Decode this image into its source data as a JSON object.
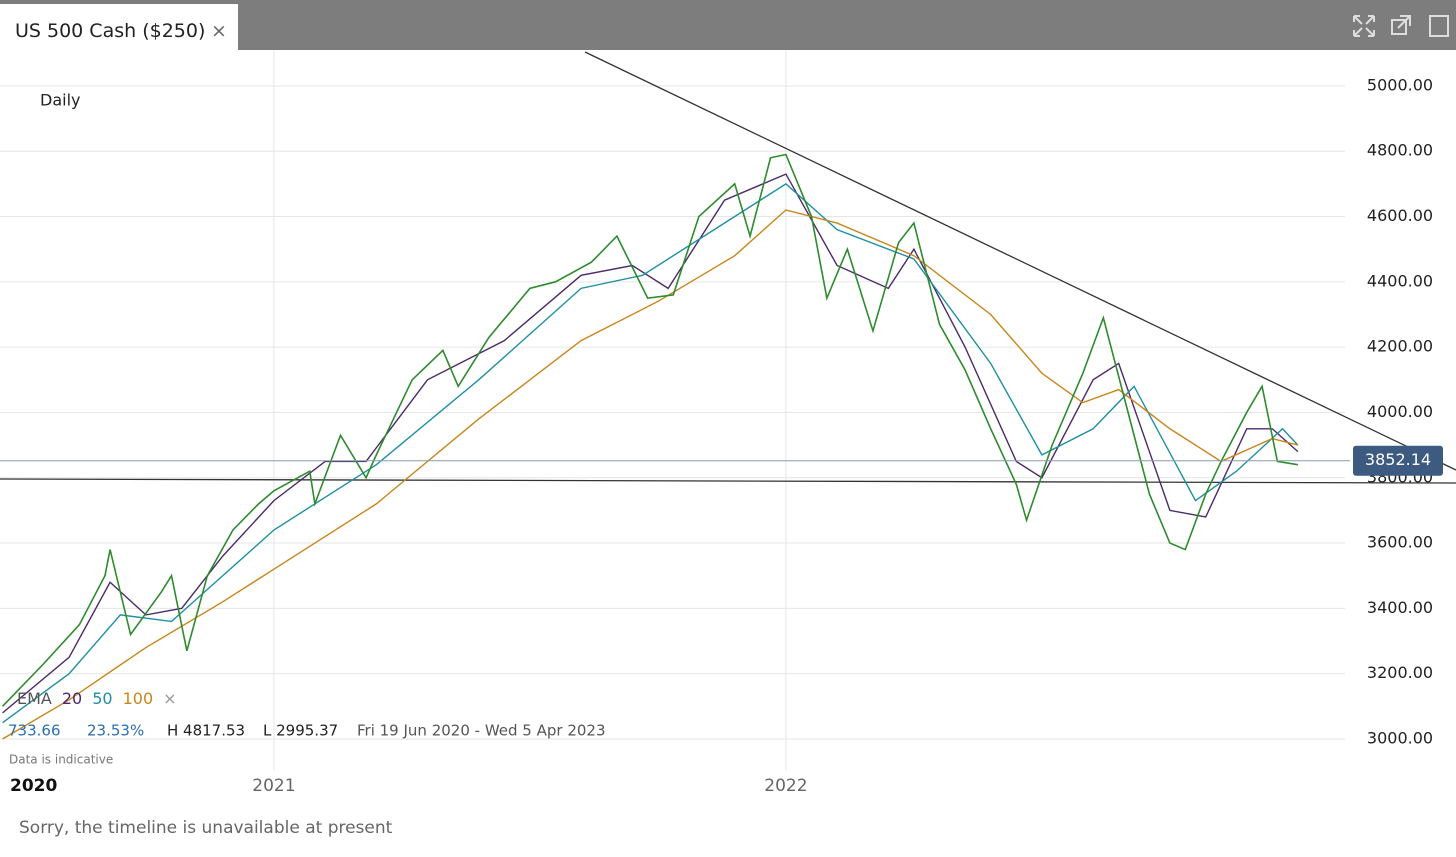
{
  "tab": {
    "title": "US 500 Cash ($250)",
    "close": "×"
  },
  "chart_data": {
    "type": "line",
    "interval": "Daily",
    "xlim": [
      2020.465,
      2023.092
    ],
    "x_start_label": "2020",
    "xticks": [
      {
        "value": 2021,
        "label": "2021"
      },
      {
        "value": 2022,
        "label": "2022"
      }
    ],
    "ylim": [
      2905,
      5110
    ],
    "yticks": [
      {
        "value": 3000,
        "label": "3000.00"
      },
      {
        "value": 3200,
        "label": "3200.00"
      },
      {
        "value": 3400,
        "label": "3400.00"
      },
      {
        "value": 3600,
        "label": "3600.00"
      },
      {
        "value": 3800,
        "label": "3800.00"
      },
      {
        "value": 4000,
        "label": "4000.00"
      },
      {
        "value": 4200,
        "label": "4200.00"
      },
      {
        "value": 4400,
        "label": "4400.00"
      },
      {
        "value": 4600,
        "label": "4600.00"
      },
      {
        "value": 4800,
        "label": "4800.00"
      },
      {
        "value": 5000,
        "label": "5000.00"
      }
    ],
    "grid": true,
    "last_price": 3852.14,
    "price": {
      "color": "#2e8b2e",
      "x": [
        2020.47,
        2020.55,
        2020.62,
        2020.67,
        2020.68,
        2020.72,
        2020.78,
        2020.8,
        2020.83,
        2020.87,
        2020.92,
        2020.97,
        2021.0,
        2021.07,
        2021.08,
        2021.13,
        2021.18,
        2021.2,
        2021.27,
        2021.33,
        2021.36,
        2021.42,
        2021.5,
        2021.55,
        2021.62,
        2021.67,
        2021.73,
        2021.78,
        2021.83,
        2021.9,
        2021.93,
        2021.97,
        2022.0,
        2022.05,
        2022.08,
        2022.12,
        2022.17,
        2022.22,
        2022.25,
        2022.3,
        2022.35,
        2022.4,
        2022.45,
        2022.47,
        2022.52,
        2022.58,
        2022.62,
        2022.66,
        2022.71,
        2022.75,
        2022.78,
        2022.82,
        2022.85,
        2022.9,
        2022.93,
        2022.96,
        2023.0
      ],
      "values": [
        3100,
        3230,
        3350,
        3500,
        3580,
        3320,
        3450,
        3500,
        3270,
        3500,
        3640,
        3720,
        3760,
        3820,
        3720,
        3930,
        3800,
        3870,
        4100,
        4190,
        4080,
        4230,
        4380,
        4400,
        4460,
        4540,
        4350,
        4360,
        4600,
        4700,
        4540,
        4780,
        4790,
        4600,
        4350,
        4500,
        4250,
        4520,
        4580,
        4270,
        4130,
        3950,
        3780,
        3670,
        3900,
        4120,
        4290,
        4050,
        3750,
        3600,
        3580,
        3750,
        3850,
        4000,
        4080,
        3850,
        3840
      ]
    },
    "series": [
      {
        "name": "20",
        "color": "#4b2a6b",
        "x": [
          2020.47,
          2020.6,
          2020.68,
          2020.75,
          2020.82,
          2020.9,
          2021.0,
          2021.1,
          2021.18,
          2021.3,
          2021.45,
          2021.6,
          2021.7,
          2021.77,
          2021.88,
          2022.0,
          2022.1,
          2022.2,
          2022.25,
          2022.35,
          2022.45,
          2022.5,
          2022.6,
          2022.65,
          2022.75,
          2022.82,
          2022.9,
          2022.95,
          2023.0
        ],
        "values": [
          3080,
          3250,
          3480,
          3380,
          3400,
          3560,
          3730,
          3850,
          3850,
          4100,
          4220,
          4420,
          4450,
          4380,
          4650,
          4730,
          4450,
          4380,
          4500,
          4200,
          3850,
          3800,
          4100,
          4150,
          3700,
          3680,
          3950,
          3950,
          3880
        ]
      },
      {
        "name": "50",
        "color": "#1f8fa3",
        "x": [
          2020.47,
          2020.6,
          2020.7,
          2020.8,
          2020.9,
          2021.0,
          2021.2,
          2021.4,
          2021.6,
          2021.72,
          2021.85,
          2022.0,
          2022.1,
          2022.25,
          2022.4,
          2022.5,
          2022.6,
          2022.68,
          2022.8,
          2022.88,
          2022.97,
          2023.0
        ],
        "values": [
          3050,
          3200,
          3380,
          3360,
          3500,
          3640,
          3840,
          4100,
          4380,
          4420,
          4550,
          4700,
          4560,
          4470,
          4150,
          3870,
          3950,
          4080,
          3730,
          3820,
          3950,
          3900
        ]
      },
      {
        "name": "100",
        "color": "#c8861a",
        "x": [
          2020.47,
          2020.6,
          2020.75,
          2020.9,
          2021.0,
          2021.2,
          2021.4,
          2021.6,
          2021.75,
          2021.9,
          2022.0,
          2022.1,
          2022.25,
          2022.4,
          2022.5,
          2022.58,
          2022.65,
          2022.75,
          2022.85,
          2022.95,
          2023.0
        ],
        "values": [
          3000,
          3120,
          3280,
          3420,
          3520,
          3720,
          3980,
          4220,
          4340,
          4480,
          4620,
          4580,
          4480,
          4300,
          4120,
          4030,
          4070,
          3950,
          3850,
          3920,
          3900
        ]
      }
    ],
    "legend_title": "EMA",
    "legend_remove": "×"
  },
  "stats": {
    "change": "733.66",
    "change_pct": "23.53%",
    "high": "H 4817.53",
    "low": "L 2995.37",
    "range": "Fri 19 Jun 2020 - Wed 5 Apr 2023",
    "note": "Data is indicative"
  },
  "footer": {
    "message": "Sorry, the timeline is unavailable at present"
  }
}
